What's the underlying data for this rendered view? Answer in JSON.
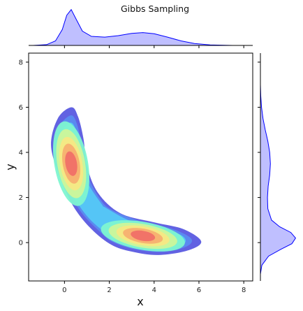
{
  "chart_data": {
    "type": "joint-kde",
    "title": "Gibbs Sampling",
    "xlabel": "x",
    "ylabel": "y",
    "xlim": [
      -1.6,
      8.4
    ],
    "ylim": [
      -1.7,
      8.4
    ],
    "xticks": [
      0,
      2,
      4,
      6,
      8
    ],
    "yticks": [
      0,
      2,
      4,
      6,
      8
    ],
    "grid": false,
    "legend": "none",
    "joint": {
      "kind": "filled-contour",
      "colormap": "jet",
      "levels": 8,
      "alpha": 0.6,
      "lowest_level_outline": [
        [
          0.3,
          6.0
        ],
        [
          0.6,
          5.6
        ],
        [
          0.85,
          4.6
        ],
        [
          1.0,
          3.4
        ],
        [
          1.5,
          2.2
        ],
        [
          2.5,
          1.3
        ],
        [
          4.0,
          0.9
        ],
        [
          5.3,
          0.6
        ],
        [
          6.1,
          0.05
        ],
        [
          5.5,
          -0.35
        ],
        [
          4.2,
          -0.55
        ],
        [
          3.0,
          -0.4
        ],
        [
          2.1,
          -0.1
        ],
        [
          1.2,
          0.6
        ],
        [
          0.4,
          1.6
        ],
        [
          -0.2,
          2.9
        ],
        [
          -0.6,
          4.3
        ],
        [
          -0.3,
          5.5
        ]
      ],
      "modes": [
        {
          "x": 0.3,
          "y": 3.5
        },
        {
          "x": 3.5,
          "y": 0.3
        }
      ]
    },
    "marginal_x": {
      "kind": "kde",
      "color": "#0000ff",
      "points": [
        [
          -1.4,
          0.0
        ],
        [
          -0.8,
          0.02
        ],
        [
          -0.4,
          0.12
        ],
        [
          -0.1,
          0.42
        ],
        [
          0.1,
          0.8
        ],
        [
          0.3,
          0.95
        ],
        [
          0.5,
          0.72
        ],
        [
          0.8,
          0.38
        ],
        [
          1.2,
          0.24
        ],
        [
          1.8,
          0.22
        ],
        [
          2.4,
          0.26
        ],
        [
          3.0,
          0.32
        ],
        [
          3.5,
          0.34
        ],
        [
          4.0,
          0.31
        ],
        [
          4.6,
          0.22
        ],
        [
          5.2,
          0.12
        ],
        [
          5.8,
          0.05
        ],
        [
          6.5,
          0.015
        ],
        [
          7.5,
          0.0
        ]
      ]
    },
    "marginal_y": {
      "kind": "kde",
      "color": "#0000ff",
      "points": [
        [
          -1.4,
          0.0
        ],
        [
          -1.0,
          0.04
        ],
        [
          -0.6,
          0.22
        ],
        [
          -0.3,
          0.55
        ],
        [
          -0.05,
          0.85
        ],
        [
          0.2,
          0.95
        ],
        [
          0.45,
          0.82
        ],
        [
          0.7,
          0.52
        ],
        [
          1.0,
          0.3
        ],
        [
          1.5,
          0.2
        ],
        [
          2.0,
          0.19
        ],
        [
          2.5,
          0.21
        ],
        [
          3.0,
          0.25
        ],
        [
          3.5,
          0.27
        ],
        [
          4.0,
          0.25
        ],
        [
          4.5,
          0.2
        ],
        [
          5.0,
          0.13
        ],
        [
          5.5,
          0.07
        ],
        [
          6.0,
          0.03
        ],
        [
          6.5,
          0.01
        ],
        [
          7.0,
          0.0
        ]
      ]
    }
  }
}
